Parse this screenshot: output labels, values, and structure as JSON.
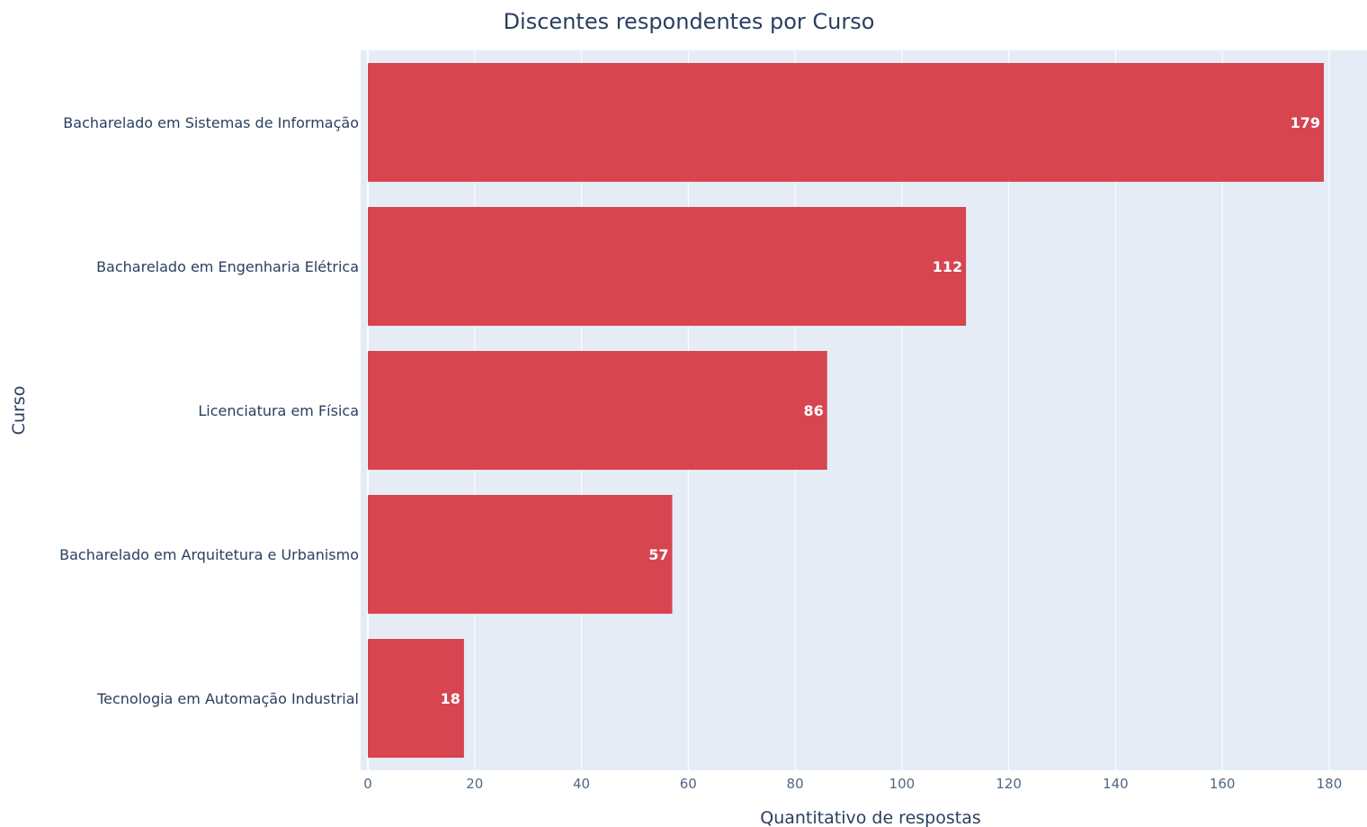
{
  "chart_data": {
    "type": "bar",
    "orientation": "horizontal",
    "title": "Discentes respondentes por Curso",
    "xlabel": "Quantitativo de respostas",
    "ylabel": "Curso",
    "categories": [
      "Bacharelado em Sistemas de Informação",
      "Bacharelado em Engenharia Elétrica",
      "Licenciatura em Física",
      "Bacharelado em Arquitetura e Urbanismo",
      "Tecnologia em Automação Industrial"
    ],
    "values": [
      179,
      112,
      86,
      57,
      18
    ],
    "data_labels": [
      "179",
      "112",
      "86",
      "57",
      "18"
    ],
    "xlim": [
      0,
      180
    ],
    "xticks": [
      0,
      20,
      40,
      60,
      80,
      100,
      120,
      140,
      160,
      180
    ],
    "grid": true,
    "legend": "none",
    "colors": {
      "bar": "#d64550",
      "plot_background": "#e5ecf6",
      "grid": "#ffffff",
      "text": "#2a3f5f"
    }
  }
}
